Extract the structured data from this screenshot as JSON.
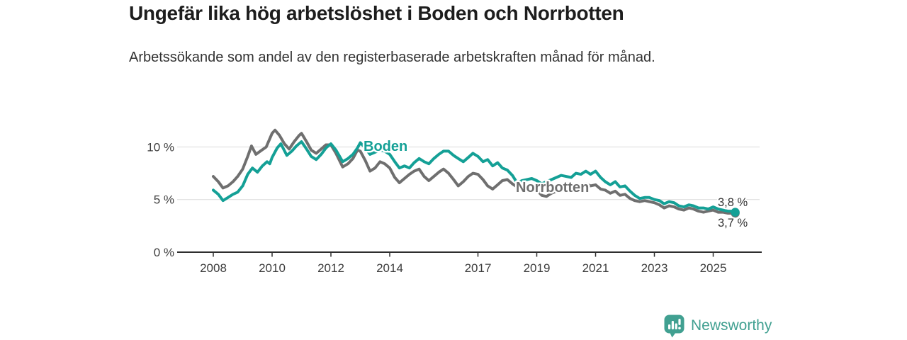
{
  "chart_data": {
    "type": "line",
    "title": "Ungefär lika hög arbetslöshet i Boden och Norrbotten",
    "subtitle": "Arbetssökande som andel av den registerbaserade arbetskraften månad för månad.",
    "unit": "%",
    "x_domain": [
      2008,
      2025.75
    ],
    "ylim": [
      0,
      12
    ],
    "grid": "horizontal",
    "legend": "inline-labels",
    "y_ticks": [
      {
        "v": 0,
        "label": "0 %"
      },
      {
        "v": 5,
        "label": "5 %"
      },
      {
        "v": 10,
        "label": "10 %"
      }
    ],
    "x_ticks": [
      {
        "v": 2008,
        "label": "2008"
      },
      {
        "v": 2010,
        "label": "2010"
      },
      {
        "v": 2012,
        "label": "2012"
      },
      {
        "v": 2014,
        "label": "2014"
      },
      {
        "v": 2017,
        "label": "2017"
      },
      {
        "v": 2019,
        "label": "2019"
      },
      {
        "v": 2021,
        "label": "2021"
      },
      {
        "v": 2023,
        "label": "2023"
      },
      {
        "v": 2025,
        "label": "2025"
      }
    ],
    "series": [
      {
        "name": "Boden",
        "color": "#14a096",
        "end_label": "3,8 %",
        "end_value": 3.8,
        "points": [
          [
            2008.0,
            5.9
          ],
          [
            2008.17,
            5.5
          ],
          [
            2008.33,
            4.9
          ],
          [
            2008.5,
            5.2
          ],
          [
            2008.67,
            5.5
          ],
          [
            2008.83,
            5.7
          ],
          [
            2009.0,
            6.3
          ],
          [
            2009.17,
            7.4
          ],
          [
            2009.33,
            8.0
          ],
          [
            2009.5,
            7.6
          ],
          [
            2009.67,
            8.2
          ],
          [
            2009.83,
            8.6
          ],
          [
            2009.92,
            8.4
          ],
          [
            2010.0,
            9.0
          ],
          [
            2010.17,
            9.9
          ],
          [
            2010.3,
            10.3
          ],
          [
            2010.5,
            9.2
          ],
          [
            2010.67,
            9.6
          ],
          [
            2010.83,
            10.1
          ],
          [
            2011.0,
            10.5
          ],
          [
            2011.17,
            9.8
          ],
          [
            2011.33,
            9.1
          ],
          [
            2011.5,
            8.8
          ],
          [
            2011.67,
            9.3
          ],
          [
            2011.83,
            9.9
          ],
          [
            2012.0,
            10.3
          ],
          [
            2012.17,
            9.7
          ],
          [
            2012.4,
            8.6
          ],
          [
            2012.58,
            8.9
          ],
          [
            2012.75,
            9.3
          ],
          [
            2012.9,
            9.9
          ],
          [
            2013.0,
            10.4
          ],
          [
            2013.17,
            9.9
          ],
          [
            2013.33,
            9.3
          ],
          [
            2013.5,
            9.5
          ],
          [
            2013.67,
            9.7
          ],
          [
            2013.83,
            9.6
          ],
          [
            2014.0,
            9.3
          ],
          [
            2014.17,
            8.6
          ],
          [
            2014.33,
            8.0
          ],
          [
            2014.5,
            8.2
          ],
          [
            2014.67,
            8.0
          ],
          [
            2014.83,
            8.5
          ],
          [
            2015.0,
            8.9
          ],
          [
            2015.17,
            8.6
          ],
          [
            2015.33,
            8.4
          ],
          [
            2015.5,
            8.9
          ],
          [
            2015.67,
            9.3
          ],
          [
            2015.83,
            9.6
          ],
          [
            2016.0,
            9.6
          ],
          [
            2016.17,
            9.2
          ],
          [
            2016.33,
            8.9
          ],
          [
            2016.5,
            8.6
          ],
          [
            2016.67,
            9.0
          ],
          [
            2016.83,
            9.4
          ],
          [
            2017.0,
            9.1
          ],
          [
            2017.17,
            8.6
          ],
          [
            2017.33,
            8.8
          ],
          [
            2017.5,
            8.2
          ],
          [
            2017.67,
            8.5
          ],
          [
            2017.83,
            8.0
          ],
          [
            2018.0,
            7.8
          ],
          [
            2018.17,
            7.3
          ],
          [
            2018.33,
            6.6
          ],
          [
            2018.5,
            6.8
          ],
          [
            2018.67,
            6.9
          ],
          [
            2018.83,
            7.0
          ],
          [
            2019.0,
            6.8
          ],
          [
            2019.17,
            6.5
          ],
          [
            2019.33,
            6.7
          ],
          [
            2019.5,
            6.9
          ],
          [
            2019.67,
            7.1
          ],
          [
            2019.83,
            7.3
          ],
          [
            2020.0,
            7.2
          ],
          [
            2020.17,
            7.1
          ],
          [
            2020.33,
            7.5
          ],
          [
            2020.5,
            7.4
          ],
          [
            2020.67,
            7.7
          ],
          [
            2020.83,
            7.4
          ],
          [
            2021.0,
            7.7
          ],
          [
            2021.17,
            7.1
          ],
          [
            2021.33,
            6.7
          ],
          [
            2021.5,
            6.4
          ],
          [
            2021.67,
            6.7
          ],
          [
            2021.83,
            6.2
          ],
          [
            2022.0,
            6.3
          ],
          [
            2022.17,
            5.8
          ],
          [
            2022.33,
            5.4
          ],
          [
            2022.5,
            5.1
          ],
          [
            2022.67,
            5.2
          ],
          [
            2022.83,
            5.2
          ],
          [
            2023.0,
            5.0
          ],
          [
            2023.17,
            4.9
          ],
          [
            2023.33,
            4.6
          ],
          [
            2023.5,
            4.8
          ],
          [
            2023.67,
            4.7
          ],
          [
            2023.83,
            4.4
          ],
          [
            2024.0,
            4.3
          ],
          [
            2024.17,
            4.5
          ],
          [
            2024.33,
            4.4
          ],
          [
            2024.5,
            4.2
          ],
          [
            2024.67,
            4.2
          ],
          [
            2024.83,
            4.1
          ],
          [
            2025.0,
            4.3
          ],
          [
            2025.17,
            4.1
          ],
          [
            2025.33,
            4.0
          ],
          [
            2025.5,
            3.9
          ],
          [
            2025.67,
            3.9
          ],
          [
            2025.75,
            3.8
          ]
        ]
      },
      {
        "name": "Norrbotten",
        "color": "#6f6f6f",
        "end_label": "3,7 %",
        "end_value": 3.7,
        "points": [
          [
            2008.0,
            7.2
          ],
          [
            2008.17,
            6.7
          ],
          [
            2008.33,
            6.1
          ],
          [
            2008.5,
            6.3
          ],
          [
            2008.67,
            6.7
          ],
          [
            2008.83,
            7.2
          ],
          [
            2009.0,
            7.9
          ],
          [
            2009.17,
            9.1
          ],
          [
            2009.3,
            10.1
          ],
          [
            2009.45,
            9.3
          ],
          [
            2009.6,
            9.6
          ],
          [
            2009.8,
            10.0
          ],
          [
            2010.0,
            11.3
          ],
          [
            2010.1,
            11.6
          ],
          [
            2010.25,
            11.1
          ],
          [
            2010.42,
            10.3
          ],
          [
            2010.58,
            9.8
          ],
          [
            2010.75,
            10.5
          ],
          [
            2010.92,
            11.1
          ],
          [
            2011.0,
            11.3
          ],
          [
            2011.17,
            10.5
          ],
          [
            2011.33,
            9.7
          ],
          [
            2011.5,
            9.4
          ],
          [
            2011.67,
            9.8
          ],
          [
            2011.83,
            10.2
          ],
          [
            2012.0,
            10.2
          ],
          [
            2012.17,
            9.4
          ],
          [
            2012.4,
            8.1
          ],
          [
            2012.58,
            8.4
          ],
          [
            2012.75,
            8.9
          ],
          [
            2012.9,
            9.7
          ],
          [
            2013.0,
            9.6
          ],
          [
            2013.17,
            8.7
          ],
          [
            2013.33,
            7.7
          ],
          [
            2013.5,
            8.0
          ],
          [
            2013.67,
            8.6
          ],
          [
            2013.83,
            8.4
          ],
          [
            2014.0,
            8.0
          ],
          [
            2014.17,
            7.1
          ],
          [
            2014.33,
            6.6
          ],
          [
            2014.5,
            7.0
          ],
          [
            2014.67,
            7.4
          ],
          [
            2014.83,
            7.7
          ],
          [
            2015.0,
            7.9
          ],
          [
            2015.17,
            7.2
          ],
          [
            2015.33,
            6.8
          ],
          [
            2015.5,
            7.2
          ],
          [
            2015.67,
            7.6
          ],
          [
            2015.83,
            7.9
          ],
          [
            2016.0,
            7.5
          ],
          [
            2016.17,
            6.9
          ],
          [
            2016.33,
            6.3
          ],
          [
            2016.5,
            6.7
          ],
          [
            2016.67,
            7.2
          ],
          [
            2016.83,
            7.5
          ],
          [
            2017.0,
            7.4
          ],
          [
            2017.17,
            6.9
          ],
          [
            2017.33,
            6.3
          ],
          [
            2017.5,
            6.0
          ],
          [
            2017.67,
            6.4
          ],
          [
            2017.83,
            6.8
          ],
          [
            2018.0,
            6.9
          ],
          [
            2018.17,
            6.5
          ],
          [
            2018.33,
            6.2
          ],
          [
            2018.5,
            6.4
          ],
          [
            2018.67,
            6.0
          ],
          [
            2018.83,
            6.2
          ],
          [
            2019.0,
            5.9
          ],
          [
            2019.17,
            5.4
          ],
          [
            2019.33,
            5.3
          ],
          [
            2019.5,
            5.6
          ],
          [
            2019.67,
            5.8
          ],
          [
            2019.83,
            6.0
          ],
          [
            2020.0,
            6.1
          ],
          [
            2020.17,
            6.0
          ],
          [
            2020.33,
            6.4
          ],
          [
            2020.5,
            6.3
          ],
          [
            2020.67,
            6.5
          ],
          [
            2020.83,
            6.3
          ],
          [
            2021.0,
            6.4
          ],
          [
            2021.17,
            6.0
          ],
          [
            2021.33,
            5.9
          ],
          [
            2021.5,
            5.6
          ],
          [
            2021.67,
            5.8
          ],
          [
            2021.83,
            5.4
          ],
          [
            2022.0,
            5.5
          ],
          [
            2022.17,
            5.1
          ],
          [
            2022.33,
            4.9
          ],
          [
            2022.5,
            4.8
          ],
          [
            2022.67,
            4.9
          ],
          [
            2022.83,
            4.8
          ],
          [
            2023.0,
            4.7
          ],
          [
            2023.17,
            4.5
          ],
          [
            2023.33,
            4.2
          ],
          [
            2023.5,
            4.4
          ],
          [
            2023.67,
            4.3
          ],
          [
            2023.83,
            4.1
          ],
          [
            2024.0,
            4.0
          ],
          [
            2024.17,
            4.2
          ],
          [
            2024.33,
            4.1
          ],
          [
            2024.5,
            3.9
          ],
          [
            2024.67,
            3.8
          ],
          [
            2024.83,
            3.9
          ],
          [
            2025.0,
            4.0
          ],
          [
            2025.17,
            3.8
          ],
          [
            2025.33,
            3.8
          ],
          [
            2025.5,
            3.7
          ],
          [
            2025.67,
            3.7
          ],
          [
            2025.75,
            3.7
          ]
        ]
      }
    ]
  },
  "footer": {
    "brand": "Newsworthy",
    "logo_icon": "newsworthy-pin-bar-chart-icon",
    "brand_color": "#41a091"
  },
  "colors": {
    "background": "#ffffff",
    "title_text": "#1d1d1d",
    "subtitle_text": "#333333",
    "axis": "#2e2e2e",
    "grid": "#dadada",
    "tick_label": "#3d3d3d",
    "value_label": "#333333"
  }
}
